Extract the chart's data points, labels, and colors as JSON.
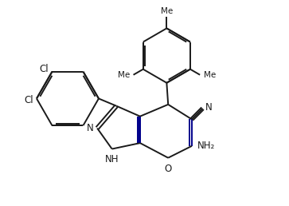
{
  "background_color": "#ffffff",
  "line_color": "#1a1a1a",
  "blue_color": "#00008B",
  "line_width": 1.4,
  "figsize": [
    3.63,
    2.58
  ],
  "dpi": 100,
  "xlim": [
    0,
    9.5
  ],
  "ylim": [
    0,
    6.8
  ]
}
